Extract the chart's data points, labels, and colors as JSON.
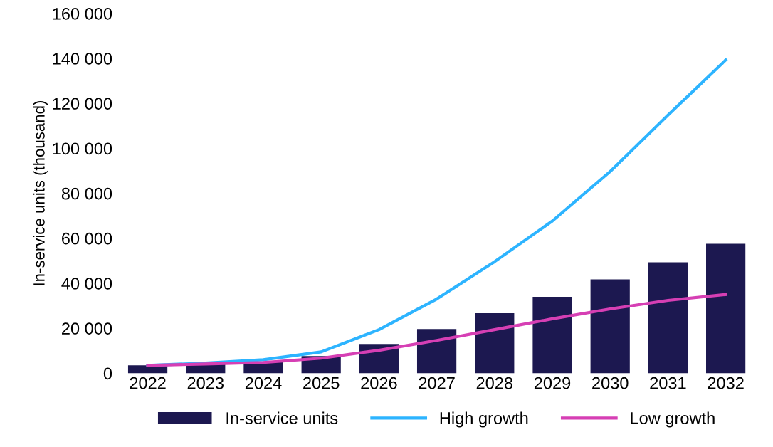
{
  "chart_data": {
    "type": "bar",
    "ylabel": "In-service units (thousand)",
    "categories": [
      "2022",
      "2023",
      "2024",
      "2025",
      "2026",
      "2027",
      "2028",
      "2029",
      "2030",
      "2031",
      "2032"
    ],
    "series": [
      {
        "name": "In-service units",
        "color": "#1c1850",
        "values": [
          3500,
          4000,
          5000,
          7600,
          13000,
          19700,
          26700,
          34000,
          41700,
          49300,
          57600
        ]
      },
      {
        "name": "High growth",
        "type": "line",
        "color": "#2db4ff",
        "values": [
          3500,
          4500,
          6000,
          9500,
          19400,
          33000,
          49600,
          67700,
          89700,
          114800,
          139300
        ]
      },
      {
        "name": "Low growth",
        "type": "line",
        "color": "#d63fb4",
        "values": [
          3500,
          4100,
          4800,
          6700,
          10200,
          14600,
          19400,
          24200,
          28600,
          32400,
          35000
        ]
      }
    ],
    "ylim": [
      0,
      160000
    ],
    "yticks": [
      0,
      {
        "value": 20000,
        "label": "20 000"
      },
      {
        "value": 40000,
        "label": "40 000"
      },
      {
        "value": 60000,
        "label": "60 000"
      },
      {
        "value": 80000,
        "label": "80 000"
      },
      {
        "value": 100000,
        "label": "100 000"
      },
      {
        "value": 120000,
        "label": "120 000"
      },
      {
        "value": 140000,
        "label": "140 000"
      },
      {
        "value": 160000,
        "label": "160 000"
      }
    ],
    "grid": false,
    "legend": "bottom",
    "marker": "none",
    "line_style": "solid"
  }
}
